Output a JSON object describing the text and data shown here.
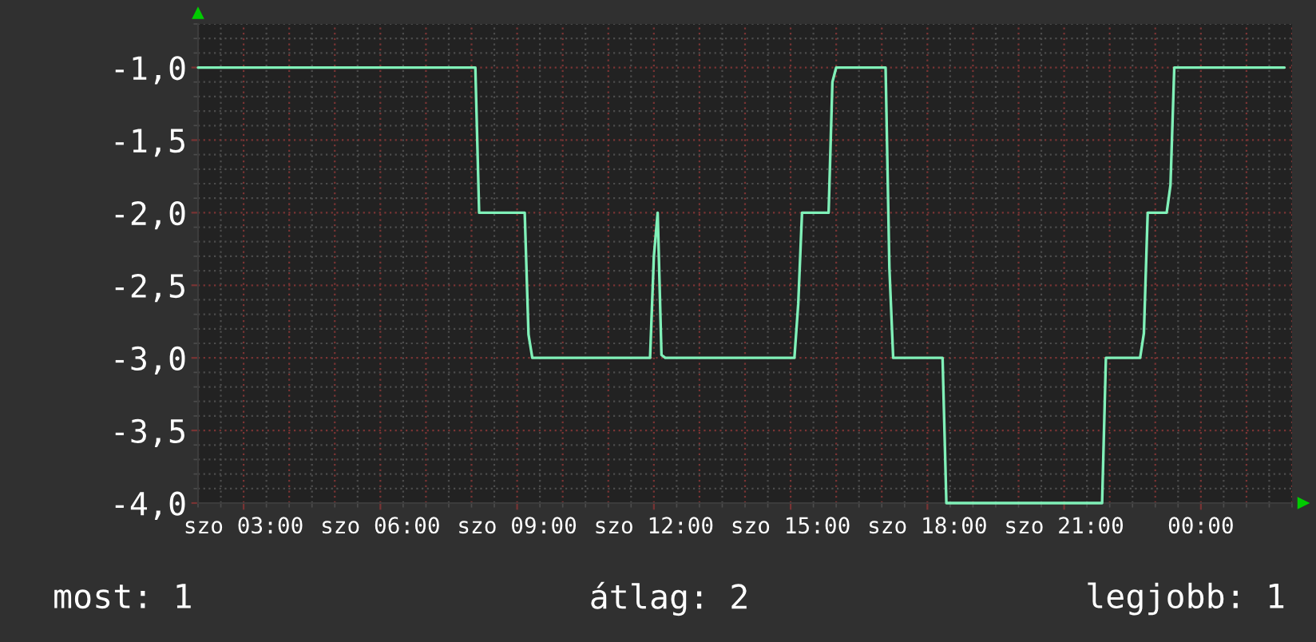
{
  "chart_data": {
    "type": "line",
    "categories": [
      null,
      null,
      null,
      null,
      null,
      null,
      null,
      null,
      null,
      null,
      null,
      null,
      "szo 03:00",
      null,
      null,
      null,
      null,
      null,
      null,
      null,
      null,
      null,
      null,
      null,
      null,
      null,
      null,
      null,
      null,
      null,
      null,
      null,
      null,
      null,
      null,
      null,
      null,
      null,
      null,
      null,
      null,
      null,
      null,
      null,
      null,
      null,
      null,
      null,
      "szo 06:00",
      null,
      null,
      null,
      null,
      null,
      null,
      null,
      null,
      null,
      null,
      null,
      null,
      null,
      null,
      null,
      null,
      null,
      null,
      null,
      null,
      null,
      null,
      null,
      null,
      null,
      null,
      null,
      null,
      null,
      null,
      null,
      null,
      null,
      null,
      null,
      "szo 09:00",
      null,
      null,
      null,
      null,
      null,
      null,
      null,
      null,
      null,
      null,
      null,
      null,
      null,
      null,
      null,
      null,
      null,
      null,
      null,
      null,
      null,
      null,
      null,
      null,
      null,
      null,
      null,
      null,
      null,
      null,
      null,
      null,
      null,
      null,
      null,
      "szo 12:00",
      null,
      null,
      null,
      null,
      null,
      null,
      null,
      null,
      null,
      null,
      null,
      null,
      null,
      null,
      null,
      null,
      null,
      null,
      null,
      null,
      null,
      null,
      null,
      null,
      null,
      null,
      null,
      null,
      null,
      null,
      null,
      null,
      null,
      null,
      null,
      "szo 15:00",
      null,
      null,
      null,
      null,
      null,
      null,
      null,
      null,
      null,
      null,
      null,
      null,
      null,
      null,
      null,
      null,
      null,
      null,
      null,
      null,
      null,
      null,
      null,
      null,
      null,
      null,
      null,
      null,
      null,
      null,
      null,
      null,
      null,
      null,
      null,
      "szo 18:00",
      null,
      null,
      null,
      null,
      null,
      null,
      null,
      null,
      null,
      null,
      null,
      null,
      null,
      null,
      null,
      null,
      null,
      null,
      null,
      null,
      null,
      null,
      null,
      null,
      null,
      null,
      null,
      null,
      null,
      null,
      null,
      null,
      null,
      null,
      null,
      "szo 21:00",
      null,
      null,
      null,
      null,
      null,
      null,
      null,
      null,
      null,
      null,
      null,
      null,
      null,
      null,
      null,
      null,
      null,
      null,
      null,
      null,
      null,
      null,
      null,
      null,
      null,
      null,
      null,
      null,
      null,
      null,
      null,
      null,
      null,
      null,
      null,
      "00:00",
      null,
      null,
      null,
      null,
      null,
      null,
      null,
      null,
      null,
      null,
      null,
      null,
      null,
      null,
      null,
      null,
      null,
      null,
      null,
      null,
      null,
      null,
      null,
      null
    ],
    "series": [
      {
        "color": "#80f0b8",
        "values": [
          -1,
          -1,
          -1,
          -1,
          -1,
          -1,
          -1,
          -1,
          -1,
          -1,
          -1,
          -1,
          -1,
          -1,
          -1,
          -1,
          -1,
          -1,
          -1,
          -1,
          -1,
          -1,
          -1,
          -1,
          -1,
          -1,
          -1,
          -1,
          -1,
          -1,
          -1,
          -1,
          -1,
          -1,
          -1,
          -1,
          -1,
          -1,
          -1,
          -1,
          -1,
          -1,
          -1,
          -1,
          -1,
          -1,
          -1,
          -1,
          -1,
          -1,
          -1,
          -1,
          -1,
          -1,
          -1,
          -1,
          -1,
          -1,
          -1,
          -1,
          -1,
          -1,
          -1,
          -1,
          -1,
          -1,
          -1,
          -1,
          -1,
          -1,
          -1,
          -1,
          -1,
          -1,
          -2,
          -2,
          -2,
          -2,
          -2,
          -2,
          -2,
          -2,
          -2,
          -2,
          -2,
          -2,
          -2,
          -2.84,
          -3,
          -3,
          -3,
          -3,
          -3,
          -3,
          -3,
          -3,
          -3,
          -3,
          -3,
          -3,
          -3,
          -3,
          -3,
          -3,
          -3,
          -3,
          -3,
          -3,
          -3,
          -3,
          -3,
          -3,
          -3,
          -3,
          -3,
          -3,
          -3,
          -3,
          -3,
          -3,
          -2.3,
          -2,
          -2.98,
          -3,
          -3,
          -3,
          -3,
          -3,
          -3,
          -3,
          -3,
          -3,
          -3,
          -3,
          -3,
          -3,
          -3,
          -3,
          -3,
          -3,
          -3,
          -3,
          -3,
          -3,
          -3,
          -3,
          -3,
          -3,
          -3,
          -3,
          -3,
          -3,
          -3,
          -3,
          -3,
          -3,
          -3,
          -3,
          -2.63,
          -2,
          -2,
          -2,
          -2,
          -2,
          -2,
          -2,
          -2,
          -1.1,
          -1,
          -1,
          -1,
          -1,
          -1,
          -1,
          -1,
          -1,
          -1,
          -1,
          -1,
          -1,
          -1,
          -1,
          -2.38,
          -3,
          -3,
          -3,
          -3,
          -3,
          -3,
          -3,
          -3,
          -3,
          -3,
          -3,
          -3,
          -3,
          -3,
          -4,
          -4,
          -4,
          -4,
          -4,
          -4,
          -4,
          -4,
          -4,
          -4,
          -4,
          -4,
          -4,
          -4,
          -4,
          -4,
          -4,
          -4,
          -4,
          -4,
          -4,
          -4,
          -4,
          -4,
          -4,
          -4,
          -4,
          -4,
          -4,
          -4,
          -4,
          -4,
          -4,
          -4,
          -4,
          -4,
          -4,
          -4,
          -4,
          -4,
          -4,
          -4,
          -3,
          -3,
          -3,
          -3,
          -3,
          -3,
          -3,
          -3,
          -3,
          -3,
          -2.83,
          -2,
          -2,
          -2,
          -2,
          -2,
          -2,
          -1.81,
          -1,
          -1,
          -1,
          -1,
          -1,
          -1,
          -1,
          -1,
          -1,
          -1,
          -1,
          -1,
          -1,
          -1,
          -1,
          -1,
          -1,
          -1,
          -1,
          -1,
          -1,
          -1,
          -1,
          -1,
          -1,
          -1,
          -1,
          -1,
          -1,
          -1,
          null,
          null
        ]
      }
    ],
    "ylim": [
      -4.0,
      -0.7
    ],
    "yticks": [
      {
        "value": -4.0,
        "label": "-4,0"
      },
      {
        "value": -3.5,
        "label": "-3,5"
      },
      {
        "value": -3.0,
        "label": "-3,0"
      },
      {
        "value": -2.5,
        "label": "-2,5"
      },
      {
        "value": -2.0,
        "label": "-2,0"
      },
      {
        "value": -1.5,
        "label": "-1,5"
      },
      {
        "value": -1.0,
        "label": "-1,0"
      }
    ],
    "grid": true,
    "annotations": [
      "most: 1",
      "átlag: 2",
      "legjobb: 1"
    ]
  }
}
